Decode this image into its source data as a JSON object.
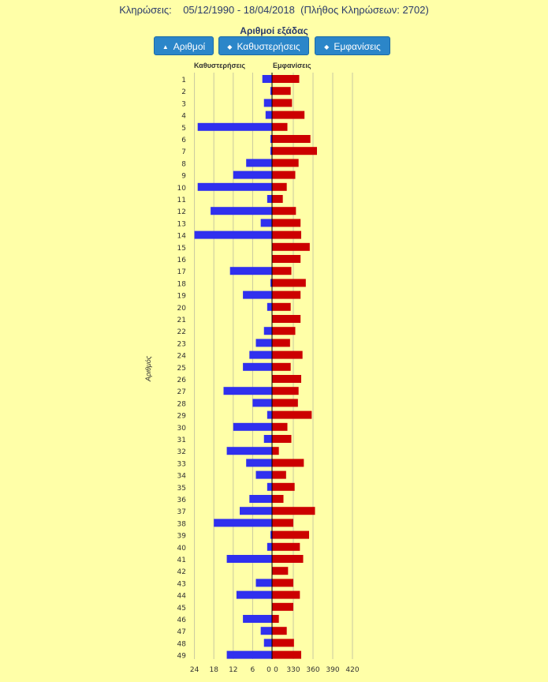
{
  "header": {
    "label": "Κληρώσεις:",
    "dates": "05/12/1990 - 18/04/2018",
    "count": "(Πλήθος Κληρώσεων: 2702)"
  },
  "buttons": [
    {
      "label": "Αριθμοί",
      "icon": "sort-up-icon"
    },
    {
      "label": "Καθυστερήσεις",
      "icon": "sort-both-icon"
    },
    {
      "label": "Εμφανίσεις",
      "icon": "sort-both-icon"
    }
  ],
  "chart_data": {
    "type": "bar",
    "title": "Αριθμοί εξάδας",
    "ylabel": "Αριθμός",
    "categories": [
      "1",
      "2",
      "3",
      "4",
      "5",
      "6",
      "7",
      "8",
      "9",
      "10",
      "11",
      "12",
      "13",
      "14",
      "15",
      "16",
      "17",
      "18",
      "19",
      "20",
      "21",
      "22",
      "23",
      "24",
      "25",
      "26",
      "27",
      "28",
      "29",
      "30",
      "31",
      "32",
      "33",
      "34",
      "35",
      "36",
      "37",
      "38",
      "39",
      "40",
      "41",
      "42",
      "43",
      "44",
      "45",
      "46",
      "47",
      "48",
      "49"
    ],
    "series": [
      {
        "name": "Καθυστερήσεις",
        "color": "#3030ee",
        "values": [
          3,
          0.5,
          2.5,
          2,
          23,
          0.5,
          0.5,
          8,
          12,
          23,
          1.5,
          19,
          3.5,
          24,
          0,
          0,
          13,
          0.5,
          9,
          1.5,
          0,
          2.5,
          5,
          7,
          9,
          0,
          15,
          6,
          1.5,
          12,
          2.5,
          14,
          8,
          5,
          1.5,
          7,
          10,
          18,
          0.5,
          1.5,
          14,
          0,
          5,
          11,
          0,
          9,
          3.5,
          2.5,
          14
        ]
      },
      {
        "name": "Εμφανίσεις",
        "color": "#cc0000",
        "values": [
          339,
          326,
          328,
          347,
          321,
          356,
          366,
          338,
          333,
          320,
          314,
          334,
          341,
          342,
          355,
          341,
          327,
          349,
          341,
          326,
          341,
          333,
          325,
          344,
          326,
          342,
          338,
          337,
          358,
          321,
          327,
          308,
          346,
          319,
          332,
          315,
          363,
          330,
          354,
          340,
          345,
          322,
          330,
          340,
          330,
          308,
          320,
          331,
          342
        ]
      }
    ],
    "left_axis": {
      "ticks": [
        "24",
        "18",
        "12",
        "6",
        "0"
      ],
      "range": [
        0,
        24
      ]
    },
    "right_axis": {
      "ticks": [
        "0",
        "330",
        "360",
        "390",
        "420"
      ]
    }
  }
}
